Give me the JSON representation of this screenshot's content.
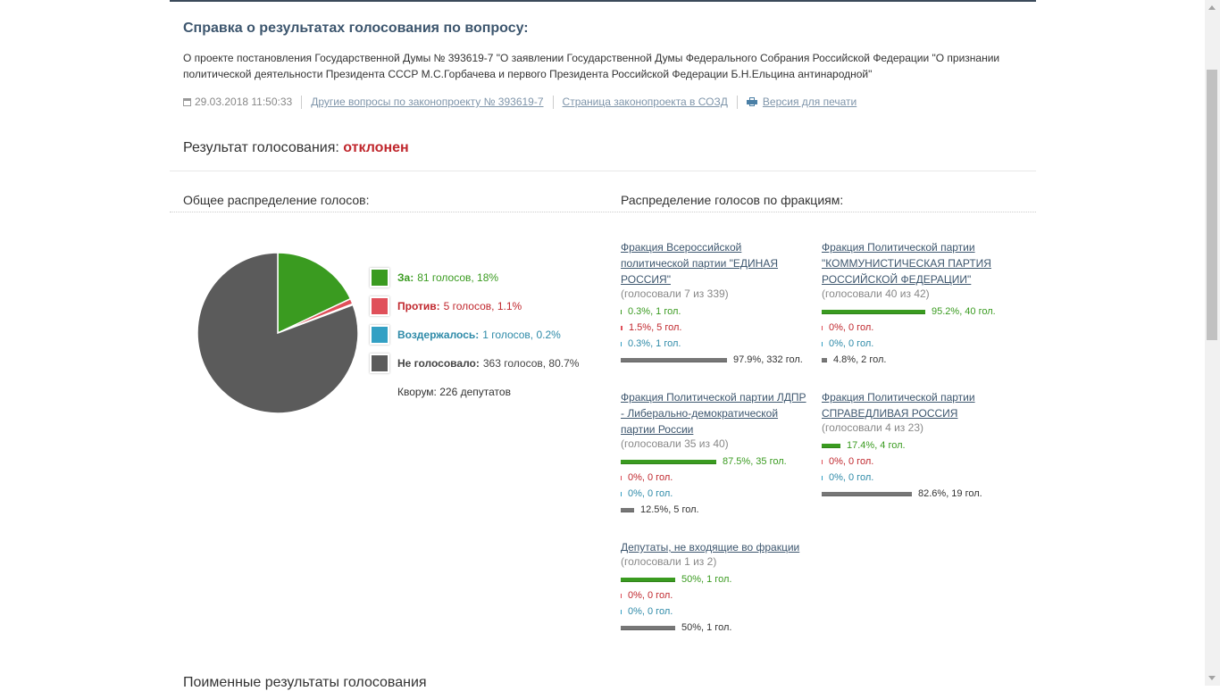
{
  "header": {
    "title": "Справка о результатах голосования по вопросу:",
    "description": "О проекте постановления Государственной Думы № 393619-7 \"О заявлении Государственной Думы Федерального Собрания Российской Федерации \"О признании политической деятельности Президента СССР М.С.Горбачева и первого Президента Российской Федерации Б.Н.Ельцина антинародной\""
  },
  "meta": {
    "datetime": "29.03.2018 11:50:33",
    "link_other": "Другие вопросы по законопроекту № 393619-7",
    "link_page": "Страница законопроекта в СОЗД",
    "link_print": "Версия для печати"
  },
  "result": {
    "label": "Результат голосования:",
    "value": "отклонен"
  },
  "sections": {
    "overall": "Общее распределение голосов:",
    "factions": "Распределение голосов по фракциям:"
  },
  "chart_data": {
    "type": "pie",
    "slices": [
      {
        "label": "За:",
        "value_text": "81 голосов, 18%",
        "percent": 18.0,
        "color": "#3a9b20"
      },
      {
        "label": "Против:",
        "value_text": "5 голосов, 1.1%",
        "percent": 1.1,
        "color": "#e0505a"
      },
      {
        "label": "Воздержалось:",
        "value_text": "1 голосов, 0.2%",
        "percent": 0.2,
        "color": "#33a0c4"
      },
      {
        "label": "Не голосовало:",
        "value_text": "363 голосов, 80.7%",
        "percent": 80.7,
        "color": "#5b5b5b"
      }
    ]
  },
  "quorum": "Кворум: 226 депутатов",
  "factions": [
    {
      "title": "Фракция Всероссийской политической партии \"ЕДИНАЯ РОССИЯ\"",
      "voted": "(голосовали 7 из 339)",
      "rows": [
        {
          "kind": "for",
          "fraction": 0.003,
          "text": "0.3%, 1 гол."
        },
        {
          "kind": "against",
          "fraction": 0.015,
          "text": "1.5%, 5 гол."
        },
        {
          "kind": "abstain",
          "fraction": 0.003,
          "text": "0.3%, 1 гол."
        },
        {
          "kind": "absent",
          "fraction": 0.979,
          "text": "97.9%, 332 гол."
        }
      ]
    },
    {
      "title": "Фракция Политической партии \"КОММУНИСТИЧЕСКАЯ ПАРТИЯ РОССИЙСКОЙ ФЕДЕРАЦИИ\"",
      "voted": "(голосовали 40 из 42)",
      "rows": [
        {
          "kind": "for",
          "fraction": 0.952,
          "text": "95.2%, 40 гол."
        },
        {
          "kind": "against",
          "fraction": 0.0,
          "text": "0%, 0 гол."
        },
        {
          "kind": "abstain",
          "fraction": 0.0,
          "text": "0%, 0 гол."
        },
        {
          "kind": "absent",
          "fraction": 0.048,
          "text": "4.8%, 2 гол."
        }
      ]
    },
    {
      "title": "Фракция Политической партии ЛДПР - Либерально-демократической партии России",
      "voted": "(голосовали 35 из 40)",
      "rows": [
        {
          "kind": "for",
          "fraction": 0.875,
          "text": "87.5%, 35 гол."
        },
        {
          "kind": "against",
          "fraction": 0.0,
          "text": "0%, 0 гол."
        },
        {
          "kind": "abstain",
          "fraction": 0.0,
          "text": "0%, 0 гол."
        },
        {
          "kind": "absent",
          "fraction": 0.125,
          "text": "12.5%, 5 гол."
        }
      ]
    },
    {
      "title": "Фракция Политической партии СПРАВЕДЛИВАЯ РОССИЯ",
      "voted": "(голосовали 4 из 23)",
      "rows": [
        {
          "kind": "for",
          "fraction": 0.174,
          "text": "17.4%, 4 гол."
        },
        {
          "kind": "against",
          "fraction": 0.0,
          "text": "0%, 0 гол."
        },
        {
          "kind": "abstain",
          "fraction": 0.0,
          "text": "0%, 0 гол."
        },
        {
          "kind": "absent",
          "fraction": 0.826,
          "text": "82.6%, 19 гол."
        }
      ]
    },
    {
      "title": "Депутаты, не входящие во фракции",
      "voted": "(голосовали 1 из 2)",
      "rows": [
        {
          "kind": "for",
          "fraction": 0.5,
          "text": "50%, 1 гол."
        },
        {
          "kind": "against",
          "fraction": 0.0,
          "text": "0%, 0 гол."
        },
        {
          "kind": "abstain",
          "fraction": 0.0,
          "text": "0%, 0 гол."
        },
        {
          "kind": "absent",
          "fraction": 0.5,
          "text": "50%, 1 гол."
        }
      ]
    }
  ],
  "colors": {
    "for": "#3a9b20",
    "against": "#c0272d",
    "abstain": "#2e8aa8",
    "absent": "#777777"
  },
  "bottom_heading": "Поименные результаты голосования"
}
